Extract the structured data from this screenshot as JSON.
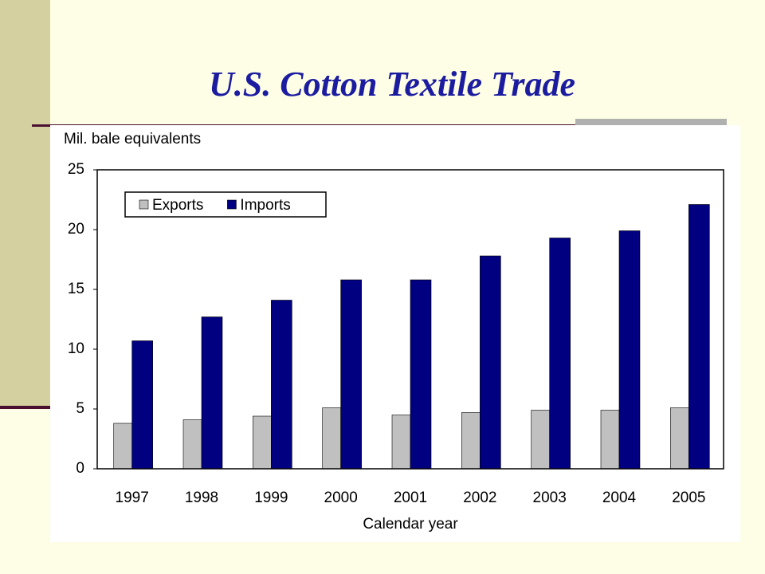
{
  "chart_data": {
    "type": "bar",
    "title": "U.S. Cotton Textile Trade",
    "y_label": "Mil. bale equivalents",
    "x_label": "Calendar year",
    "categories": [
      "1997",
      "1998",
      "1999",
      "2000",
      "2001",
      "2002",
      "2003",
      "2004",
      "2005"
    ],
    "series": [
      {
        "name": "Exports",
        "color": "#c0c0c0",
        "values": [
          3.8,
          4.1,
          4.4,
          5.1,
          4.5,
          4.7,
          4.9,
          4.9,
          5.1
        ]
      },
      {
        "name": "Imports",
        "color": "#000080",
        "values": [
          10.7,
          12.7,
          14.1,
          15.8,
          15.8,
          17.8,
          19.3,
          19.9,
          22.1
        ]
      }
    ],
    "ylim": [
      0,
      25
    ],
    "yticks": [
      0,
      5,
      10,
      15,
      20,
      25
    ],
    "grid": false,
    "legend": "upper left"
  }
}
